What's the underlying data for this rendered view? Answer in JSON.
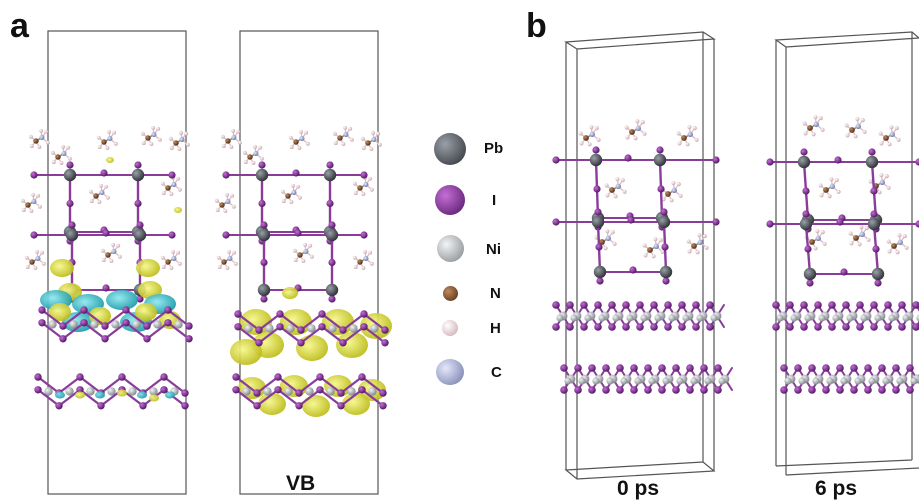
{
  "panels": [
    {
      "label": "a"
    },
    {
      "label": "b"
    }
  ],
  "captions": {
    "band": "VB",
    "time_start": "0 ps",
    "time_end": "6 ps"
  },
  "legend": [
    {
      "element": "Pb",
      "color": "#4a4e55"
    },
    {
      "element": "I",
      "color": "#7b2a8c"
    },
    {
      "element": "Ni",
      "color": "#a8adb0"
    },
    {
      "element": "N",
      "color": "#7a4a2a"
    },
    {
      "element": "H",
      "color": "#e7c9cf"
    },
    {
      "element": "C",
      "color": "#9ea6c9"
    }
  ],
  "isosurface_colors": {
    "positive": "#e3e32c",
    "negative": "#26b8c4"
  }
}
